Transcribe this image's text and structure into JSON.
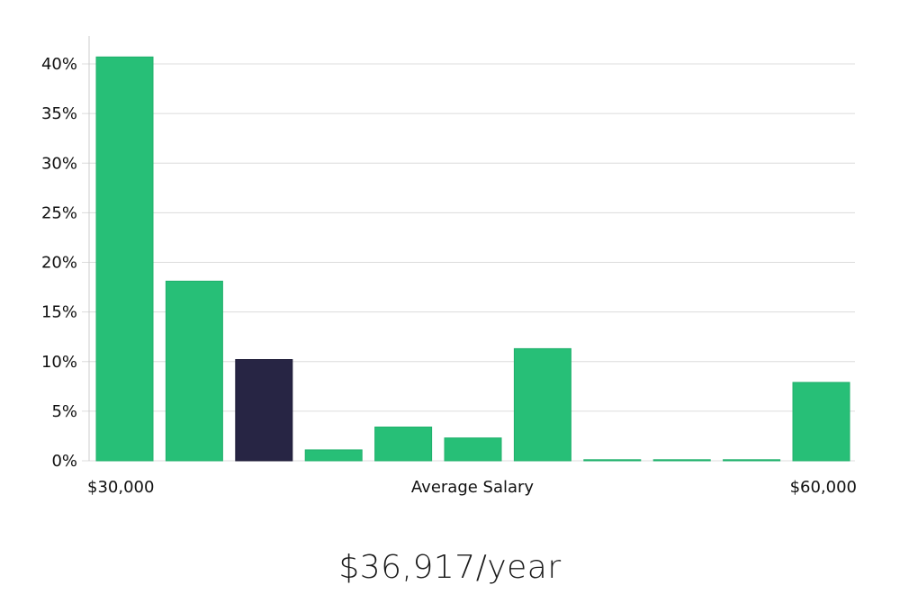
{
  "chart_data": {
    "type": "bar",
    "xlabel": "Average Salary",
    "x_range_labels": [
      "$30,000",
      "$60,000"
    ],
    "y_tick_labels": [
      "0%",
      "5%",
      "10%",
      "15%",
      "20%",
      "25%",
      "30%",
      "35%",
      "40%"
    ],
    "ylim": [
      0,
      43
    ],
    "grid": true,
    "values": [
      40.7,
      18.1,
      10.2,
      1.1,
      3.4,
      2.3,
      11.3,
      0.1,
      0.1,
      0.1,
      7.9
    ],
    "highlight_index": 2,
    "colors": {
      "bar": "#27bf77",
      "highlight": "#272544"
    }
  },
  "salary_text": "$36,917/year"
}
